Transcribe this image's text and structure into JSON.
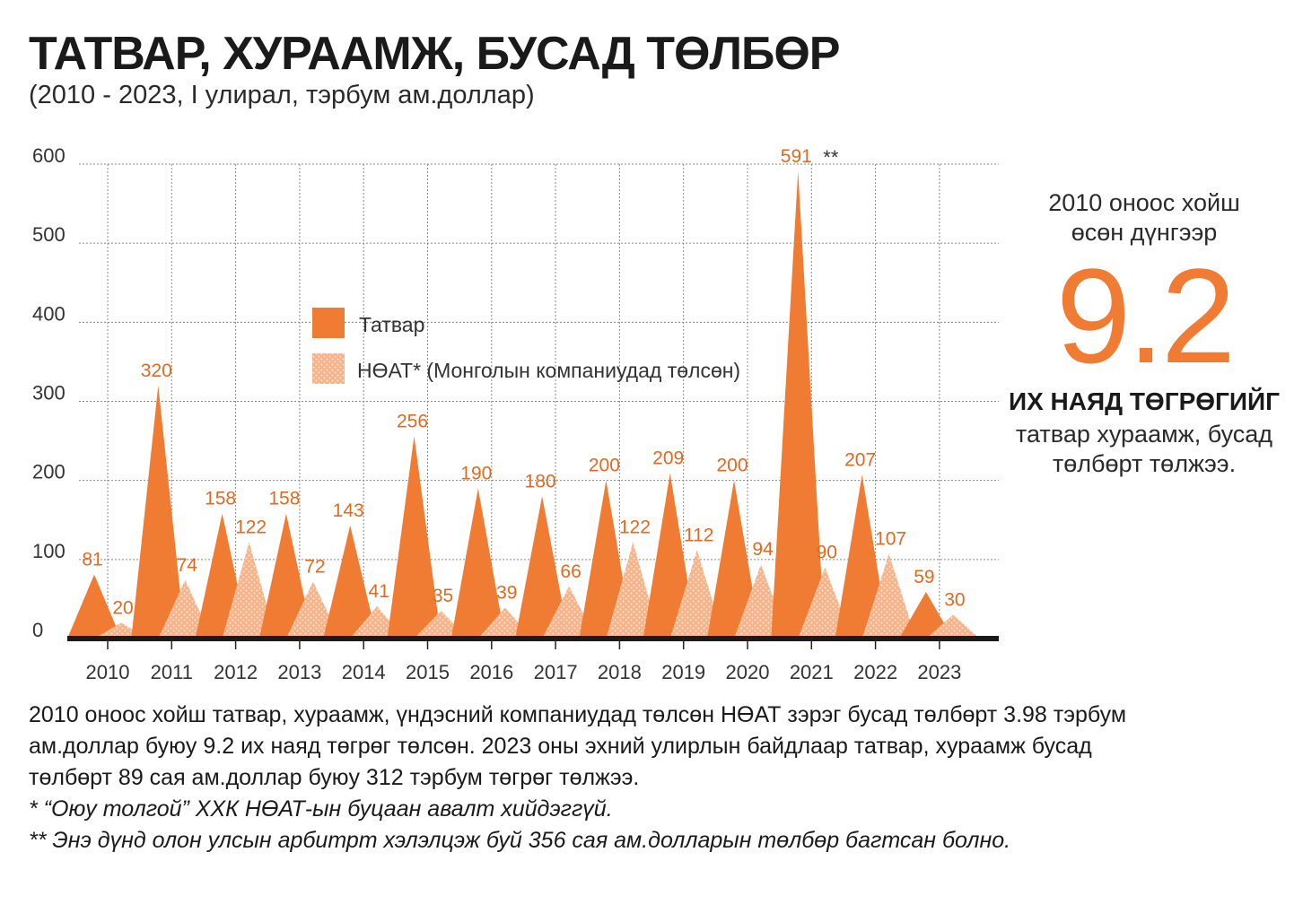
{
  "header": {
    "title": "ТАТВАР, ХУРААМЖ, БУСАД ТӨЛБӨР",
    "subtitle": "(2010 - 2023, I улирал, тэрбум ам.доллар)"
  },
  "chart_data": {
    "type": "area",
    "categories": [
      "2010",
      "2011",
      "2012",
      "2013",
      "2014",
      "2015",
      "2016",
      "2017",
      "2018",
      "2019",
      "2020",
      "2021",
      "2022",
      "2023"
    ],
    "series": [
      {
        "name": "Татвар",
        "color": "#f07b33",
        "values": [
          81,
          320,
          158,
          158,
          143,
          256,
          190,
          180,
          200,
          209,
          200,
          591,
          207,
          59
        ]
      },
      {
        "name": "НӨАТ* (Монголын компаниудад төлсөн)",
        "color": "#f6b48a",
        "pattern": "dotted",
        "values": [
          20,
          74,
          122,
          72,
          41,
          35,
          39,
          66,
          122,
          112,
          94,
          90,
          107,
          30
        ]
      }
    ],
    "ylim": [
      0,
      600
    ],
    "yticks": [
      0,
      100,
      200,
      300,
      400,
      500,
      600
    ],
    "grid": true,
    "legend_position": "center",
    "annotation": "**",
    "annotation_at": "2021"
  },
  "side": {
    "intro_line1": "2010 оноос хойш",
    "intro_line2": "өсөн дүнгээр",
    "big_number": "9.2",
    "bold_label": "ИХ НАЯД ТӨГРӨГИЙГ",
    "text_line1": "татвар хураамж, бусад",
    "text_line2": "төлбөрт төлжээ."
  },
  "notes": {
    "line1": "2010 оноос хойш татвар, хураамж, үндэсний компаниудад төлсөн НӨАТ зэрэг бусад төлбөрт 3.98 тэрбум",
    "line2": "ам.доллар буюу 9.2 их наяд төгрөг төлсөн. 2023 оны эхний улирлын байдлаар татвар, хураамж бусад",
    "line3": "төлбөрт 89 сая ам.доллар буюу 312 тэрбум төгрөг төлжээ.",
    "footnote1": "* “Оюу толгой” ХХК НӨАТ-ын буцаан авалт хийдэггүй.",
    "footnote2": "** Энэ дүнд олон улсын арбитрт хэлэлцэж буй 356 сая ам.долларын төлбөр багтсан болно."
  }
}
